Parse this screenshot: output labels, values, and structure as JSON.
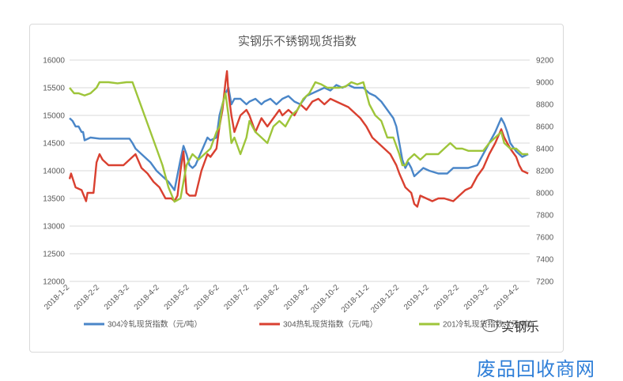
{
  "chart_data": {
    "type": "line",
    "title": "实钢乐不锈钢现货指数",
    "x_labels": [
      "2018-1-2",
      "2018-2-2",
      "2018-3-2",
      "2018-4-2",
      "2018-5-2",
      "2018-6-2",
      "2018-7-2",
      "2018-8-2",
      "2018-9-2",
      "2018-10-2",
      "2018-11-2",
      "2018-12-2",
      "2019-1-2",
      "2019-2-2",
      "2019-3-2",
      "2019-4-2"
    ],
    "y_left": {
      "min": 12000,
      "max": 16000,
      "ticks": [
        12000,
        12500,
        13000,
        13500,
        14000,
        14500,
        15000,
        15500,
        16000
      ]
    },
    "y_right": {
      "min": 7200,
      "max": 9200,
      "ticks": [
        7200,
        7400,
        7600,
        7800,
        8000,
        8200,
        8400,
        8600,
        8800,
        9000,
        9200
      ]
    },
    "grid": true,
    "legend_position": "bottom",
    "series": [
      {
        "name": "304冷轧现货指数（元/吨）",
        "axis": "left",
        "color": "#4a86c8",
        "values": [
          [
            0,
            14950
          ],
          [
            0.1,
            14900
          ],
          [
            0.2,
            14800
          ],
          [
            0.3,
            14800
          ],
          [
            0.4,
            14700
          ],
          [
            0.45,
            14700
          ],
          [
            0.5,
            14550
          ],
          [
            0.7,
            14600
          ],
          [
            1.0,
            14580
          ],
          [
            1.5,
            14580
          ],
          [
            2.0,
            14580
          ],
          [
            2.1,
            14500
          ],
          [
            2.2,
            14400
          ],
          [
            2.4,
            14300
          ],
          [
            2.5,
            14250
          ],
          [
            2.7,
            14150
          ],
          [
            2.9,
            14000
          ],
          [
            3.1,
            13900
          ],
          [
            3.3,
            13800
          ],
          [
            3.5,
            13650
          ],
          [
            3.7,
            14200
          ],
          [
            3.8,
            14450
          ],
          [
            3.9,
            14300
          ],
          [
            4.0,
            14100
          ],
          [
            4.1,
            14050
          ],
          [
            4.2,
            14100
          ],
          [
            4.4,
            14350
          ],
          [
            4.6,
            14600
          ],
          [
            4.7,
            14550
          ],
          [
            4.9,
            14600
          ],
          [
            5.0,
            15000
          ],
          [
            5.2,
            15400
          ],
          [
            5.3,
            15500
          ],
          [
            5.4,
            15200
          ],
          [
            5.5,
            15300
          ],
          [
            5.7,
            15300
          ],
          [
            5.9,
            15200
          ],
          [
            6.0,
            15250
          ],
          [
            6.2,
            15300
          ],
          [
            6.4,
            15200
          ],
          [
            6.5,
            15250
          ],
          [
            6.7,
            15300
          ],
          [
            6.9,
            15200
          ],
          [
            7.1,
            15300
          ],
          [
            7.3,
            15350
          ],
          [
            7.5,
            15250
          ],
          [
            7.7,
            15200
          ],
          [
            7.9,
            15350
          ],
          [
            8.1,
            15400
          ],
          [
            8.3,
            15450
          ],
          [
            8.5,
            15500
          ],
          [
            8.7,
            15450
          ],
          [
            8.9,
            15550
          ],
          [
            9.1,
            15500
          ],
          [
            9.3,
            15550
          ],
          [
            9.5,
            15500
          ],
          [
            9.8,
            15500
          ],
          [
            10.0,
            15400
          ],
          [
            10.2,
            15350
          ],
          [
            10.4,
            15250
          ],
          [
            10.6,
            15100
          ],
          [
            10.8,
            14950
          ],
          [
            10.9,
            14800
          ],
          [
            11.0,
            14500
          ],
          [
            11.1,
            14200
          ],
          [
            11.2,
            14050
          ],
          [
            11.3,
            14150
          ],
          [
            11.4,
            14050
          ],
          [
            11.5,
            13900
          ],
          [
            11.6,
            13950
          ],
          [
            11.8,
            14050
          ],
          [
            12.0,
            14000
          ],
          [
            12.3,
            13950
          ],
          [
            12.6,
            13950
          ],
          [
            12.8,
            14050
          ],
          [
            13.0,
            14050
          ],
          [
            13.3,
            14050
          ],
          [
            13.6,
            14100
          ],
          [
            13.8,
            14300
          ],
          [
            14.0,
            14500
          ],
          [
            14.2,
            14700
          ],
          [
            14.4,
            14950
          ],
          [
            14.5,
            14850
          ],
          [
            14.6,
            14700
          ],
          [
            14.7,
            14500
          ],
          [
            14.9,
            14350
          ],
          [
            15.1,
            14250
          ],
          [
            15.3,
            14300
          ]
        ]
      },
      {
        "name": "304热轧现货指数（元/吨）",
        "axis": "left",
        "color": "#d94030",
        "values": [
          [
            0,
            13850
          ],
          [
            0.05,
            13950
          ],
          [
            0.2,
            13700
          ],
          [
            0.4,
            13650
          ],
          [
            0.55,
            13450
          ],
          [
            0.6,
            13600
          ],
          [
            0.8,
            13600
          ],
          [
            0.9,
            14150
          ],
          [
            1.0,
            14300
          ],
          [
            1.1,
            14200
          ],
          [
            1.3,
            14100
          ],
          [
            1.6,
            14100
          ],
          [
            1.8,
            14100
          ],
          [
            2.0,
            14200
          ],
          [
            2.2,
            14300
          ],
          [
            2.4,
            14050
          ],
          [
            2.6,
            13950
          ],
          [
            2.8,
            13800
          ],
          [
            3.0,
            13700
          ],
          [
            3.2,
            13500
          ],
          [
            3.4,
            13500
          ],
          [
            3.5,
            13450
          ],
          [
            3.6,
            13550
          ],
          [
            3.7,
            14000
          ],
          [
            3.8,
            14350
          ],
          [
            3.9,
            13600
          ],
          [
            4.0,
            13550
          ],
          [
            4.2,
            13550
          ],
          [
            4.4,
            14000
          ],
          [
            4.6,
            14300
          ],
          [
            4.7,
            14250
          ],
          [
            4.9,
            14400
          ],
          [
            5.0,
            14800
          ],
          [
            5.1,
            15100
          ],
          [
            5.2,
            15600
          ],
          [
            5.25,
            15800
          ],
          [
            5.3,
            15400
          ],
          [
            5.4,
            15000
          ],
          [
            5.5,
            14700
          ],
          [
            5.7,
            15000
          ],
          [
            5.9,
            15100
          ],
          [
            6.0,
            15000
          ],
          [
            6.2,
            14700
          ],
          [
            6.4,
            14950
          ],
          [
            6.6,
            14800
          ],
          [
            6.8,
            14950
          ],
          [
            7.0,
            15100
          ],
          [
            7.1,
            15000
          ],
          [
            7.3,
            15100
          ],
          [
            7.5,
            15000
          ],
          [
            7.7,
            15200
          ],
          [
            7.9,
            15100
          ],
          [
            8.1,
            15250
          ],
          [
            8.3,
            15300
          ],
          [
            8.5,
            15200
          ],
          [
            8.7,
            15300
          ],
          [
            8.9,
            15250
          ],
          [
            9.1,
            15200
          ],
          [
            9.3,
            15150
          ],
          [
            9.5,
            15050
          ],
          [
            9.7,
            14950
          ],
          [
            9.9,
            14800
          ],
          [
            10.1,
            14600
          ],
          [
            10.3,
            14500
          ],
          [
            10.5,
            14400
          ],
          [
            10.7,
            14300
          ],
          [
            10.9,
            14100
          ],
          [
            11.0,
            13950
          ],
          [
            11.2,
            13700
          ],
          [
            11.4,
            13600
          ],
          [
            11.5,
            13400
          ],
          [
            11.6,
            13350
          ],
          [
            11.7,
            13550
          ],
          [
            11.9,
            13500
          ],
          [
            12.1,
            13450
          ],
          [
            12.3,
            13500
          ],
          [
            12.5,
            13500
          ],
          [
            12.8,
            13450
          ],
          [
            13.0,
            13550
          ],
          [
            13.2,
            13650
          ],
          [
            13.4,
            13700
          ],
          [
            13.6,
            13900
          ],
          [
            13.8,
            14050
          ],
          [
            14.0,
            14300
          ],
          [
            14.2,
            14500
          ],
          [
            14.4,
            14750
          ],
          [
            14.5,
            14600
          ],
          [
            14.7,
            14400
          ],
          [
            14.9,
            14250
          ],
          [
            15.0,
            14100
          ],
          [
            15.1,
            14000
          ],
          [
            15.3,
            13950
          ]
        ]
      },
      {
        "name": "201冷轧现货指数（元/吨）",
        "axis": "right",
        "color": "#9ec53a",
        "values": [
          [
            0,
            8950
          ],
          [
            0.15,
            8900
          ],
          [
            0.3,
            8900
          ],
          [
            0.5,
            8880
          ],
          [
            0.7,
            8900
          ],
          [
            0.9,
            8950
          ],
          [
            1.0,
            9000
          ],
          [
            1.3,
            9000
          ],
          [
            1.6,
            8990
          ],
          [
            1.9,
            9000
          ],
          [
            2.1,
            9000
          ],
          [
            2.3,
            8850
          ],
          [
            2.5,
            8700
          ],
          [
            2.7,
            8550
          ],
          [
            2.9,
            8400
          ],
          [
            3.1,
            8250
          ],
          [
            3.3,
            8050
          ],
          [
            3.5,
            7920
          ],
          [
            3.7,
            7950
          ],
          [
            3.8,
            8100
          ],
          [
            3.9,
            8250
          ],
          [
            4.0,
            8300
          ],
          [
            4.1,
            8350
          ],
          [
            4.3,
            8300
          ],
          [
            4.5,
            8350
          ],
          [
            4.7,
            8400
          ],
          [
            4.9,
            8550
          ],
          [
            5.0,
            8600
          ],
          [
            5.1,
            8800
          ],
          [
            5.2,
            8900
          ],
          [
            5.3,
            8700
          ],
          [
            5.4,
            8450
          ],
          [
            5.5,
            8500
          ],
          [
            5.7,
            8350
          ],
          [
            5.9,
            8500
          ],
          [
            6.0,
            8650
          ],
          [
            6.2,
            8550
          ],
          [
            6.4,
            8500
          ],
          [
            6.6,
            8450
          ],
          [
            6.8,
            8600
          ],
          [
            7.0,
            8650
          ],
          [
            7.2,
            8600
          ],
          [
            7.4,
            8700
          ],
          [
            7.6,
            8750
          ],
          [
            7.8,
            8850
          ],
          [
            8.0,
            8900
          ],
          [
            8.2,
            9000
          ],
          [
            8.4,
            8980
          ],
          [
            8.6,
            8950
          ],
          [
            8.8,
            8950
          ],
          [
            9.0,
            8950
          ],
          [
            9.2,
            8960
          ],
          [
            9.4,
            9000
          ],
          [
            9.6,
            8980
          ],
          [
            9.8,
            9000
          ],
          [
            10.0,
            8800
          ],
          [
            10.2,
            8700
          ],
          [
            10.4,
            8650
          ],
          [
            10.6,
            8500
          ],
          [
            10.8,
            8500
          ],
          [
            11.0,
            8350
          ],
          [
            11.1,
            8250
          ],
          [
            11.2,
            8250
          ],
          [
            11.3,
            8300
          ],
          [
            11.5,
            8350
          ],
          [
            11.7,
            8300
          ],
          [
            11.9,
            8350
          ],
          [
            12.1,
            8350
          ],
          [
            12.3,
            8350
          ],
          [
            12.5,
            8400
          ],
          [
            12.7,
            8450
          ],
          [
            12.9,
            8400
          ],
          [
            13.1,
            8400
          ],
          [
            13.3,
            8380
          ],
          [
            13.6,
            8380
          ],
          [
            13.8,
            8380
          ],
          [
            14.0,
            8450
          ],
          [
            14.2,
            8500
          ],
          [
            14.4,
            8550
          ],
          [
            14.5,
            8450
          ],
          [
            14.7,
            8400
          ],
          [
            14.9,
            8400
          ],
          [
            15.1,
            8350
          ],
          [
            15.3,
            8350
          ]
        ]
      }
    ]
  },
  "watermark": {
    "text": "实钢乐",
    "icon": "wechat-icon"
  },
  "logo": {
    "text": "废品回收商网"
  }
}
